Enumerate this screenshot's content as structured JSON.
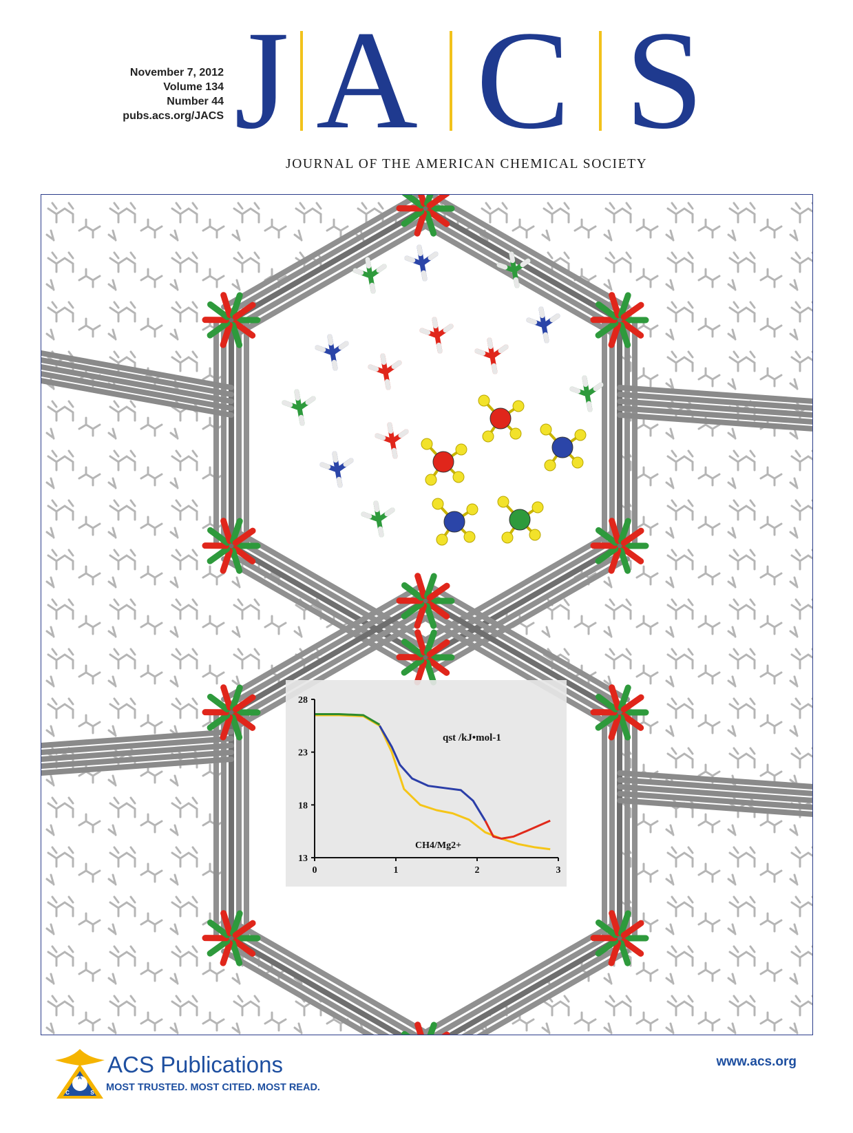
{
  "issue": {
    "date": "November 7, 2012",
    "volume": "Volume 134",
    "number": "Number 44",
    "url": "pubs.acs.org/JACS"
  },
  "masthead": {
    "letters": [
      "J",
      "A",
      "C",
      "S"
    ],
    "full_name": "JOURNAL OF THE AMERICAN CHEMICAL SOCIETY",
    "colors": {
      "letters": "#1f3a8f",
      "dividers": "#f2c21b"
    }
  },
  "cover_art": {
    "icons": [
      "mof-framework-illustration",
      "methane-molecule-icon",
      "ammonia-molecule-icon",
      "water-molecule-icon"
    ],
    "colors": {
      "carbon": "#8a8a8a",
      "oxygen": "#e0261b",
      "magnesium": "#2e9a3c",
      "nitrogen": "#2b45a8",
      "hydrogen": "#f2e22a"
    }
  },
  "chart_data": {
    "type": "line",
    "title": "",
    "xlabel": "CH4/Mg2+",
    "ylabel": "qst /kJ•mol-1",
    "xlim": [
      0,
      3
    ],
    "ylim": [
      13,
      28
    ],
    "x_ticks": [
      "0",
      "1",
      "2",
      "3"
    ],
    "y_ticks": [
      "28",
      "23",
      "18",
      "13"
    ],
    "series_annotation": "qst /kJ•mol-1",
    "axis_annotation": "CH4/Mg2+",
    "series": [
      {
        "color": "#f5c518",
        "x": [
          0,
          0.3,
          0.6,
          0.8,
          0.95,
          1.1,
          1.3,
          1.5,
          1.7,
          1.9,
          2.1,
          2.3,
          2.5,
          2.7,
          2.9
        ],
        "y": [
          26.5,
          26.5,
          26.4,
          25.5,
          23.0,
          19.5,
          18.0,
          17.5,
          17.2,
          16.6,
          15.4,
          14.8,
          14.3,
          14.0,
          13.8
        ]
      },
      {
        "color": "#2b3ea8",
        "x": [
          0.8,
          0.95,
          1.05,
          1.2,
          1.4,
          1.6,
          1.8,
          1.95,
          2.1
        ],
        "y": [
          25.5,
          23.5,
          21.8,
          20.5,
          19.8,
          19.6,
          19.4,
          18.4,
          16.5
        ]
      },
      {
        "color": "#e02a1b",
        "x": [
          2.1,
          2.2,
          2.3,
          2.45,
          2.6,
          2.75,
          2.9
        ],
        "y": [
          16.5,
          15.0,
          14.8,
          15.0,
          15.5,
          16.0,
          16.5
        ]
      },
      {
        "color": "#2e8b2e",
        "x": [
          0,
          0.3,
          0.6,
          0.8
        ],
        "y": [
          26.6,
          26.6,
          26.5,
          25.6
        ]
      }
    ]
  },
  "footer": {
    "publisher": "ACS Publications",
    "tagline": "MOST TRUSTED. MOST CITED. MOST READ.",
    "logo_letters": [
      "A",
      "C",
      "S"
    ],
    "website": "www.acs.org",
    "colors": {
      "brand": "#1e4fa0",
      "logo_gold": "#f5b400"
    }
  }
}
